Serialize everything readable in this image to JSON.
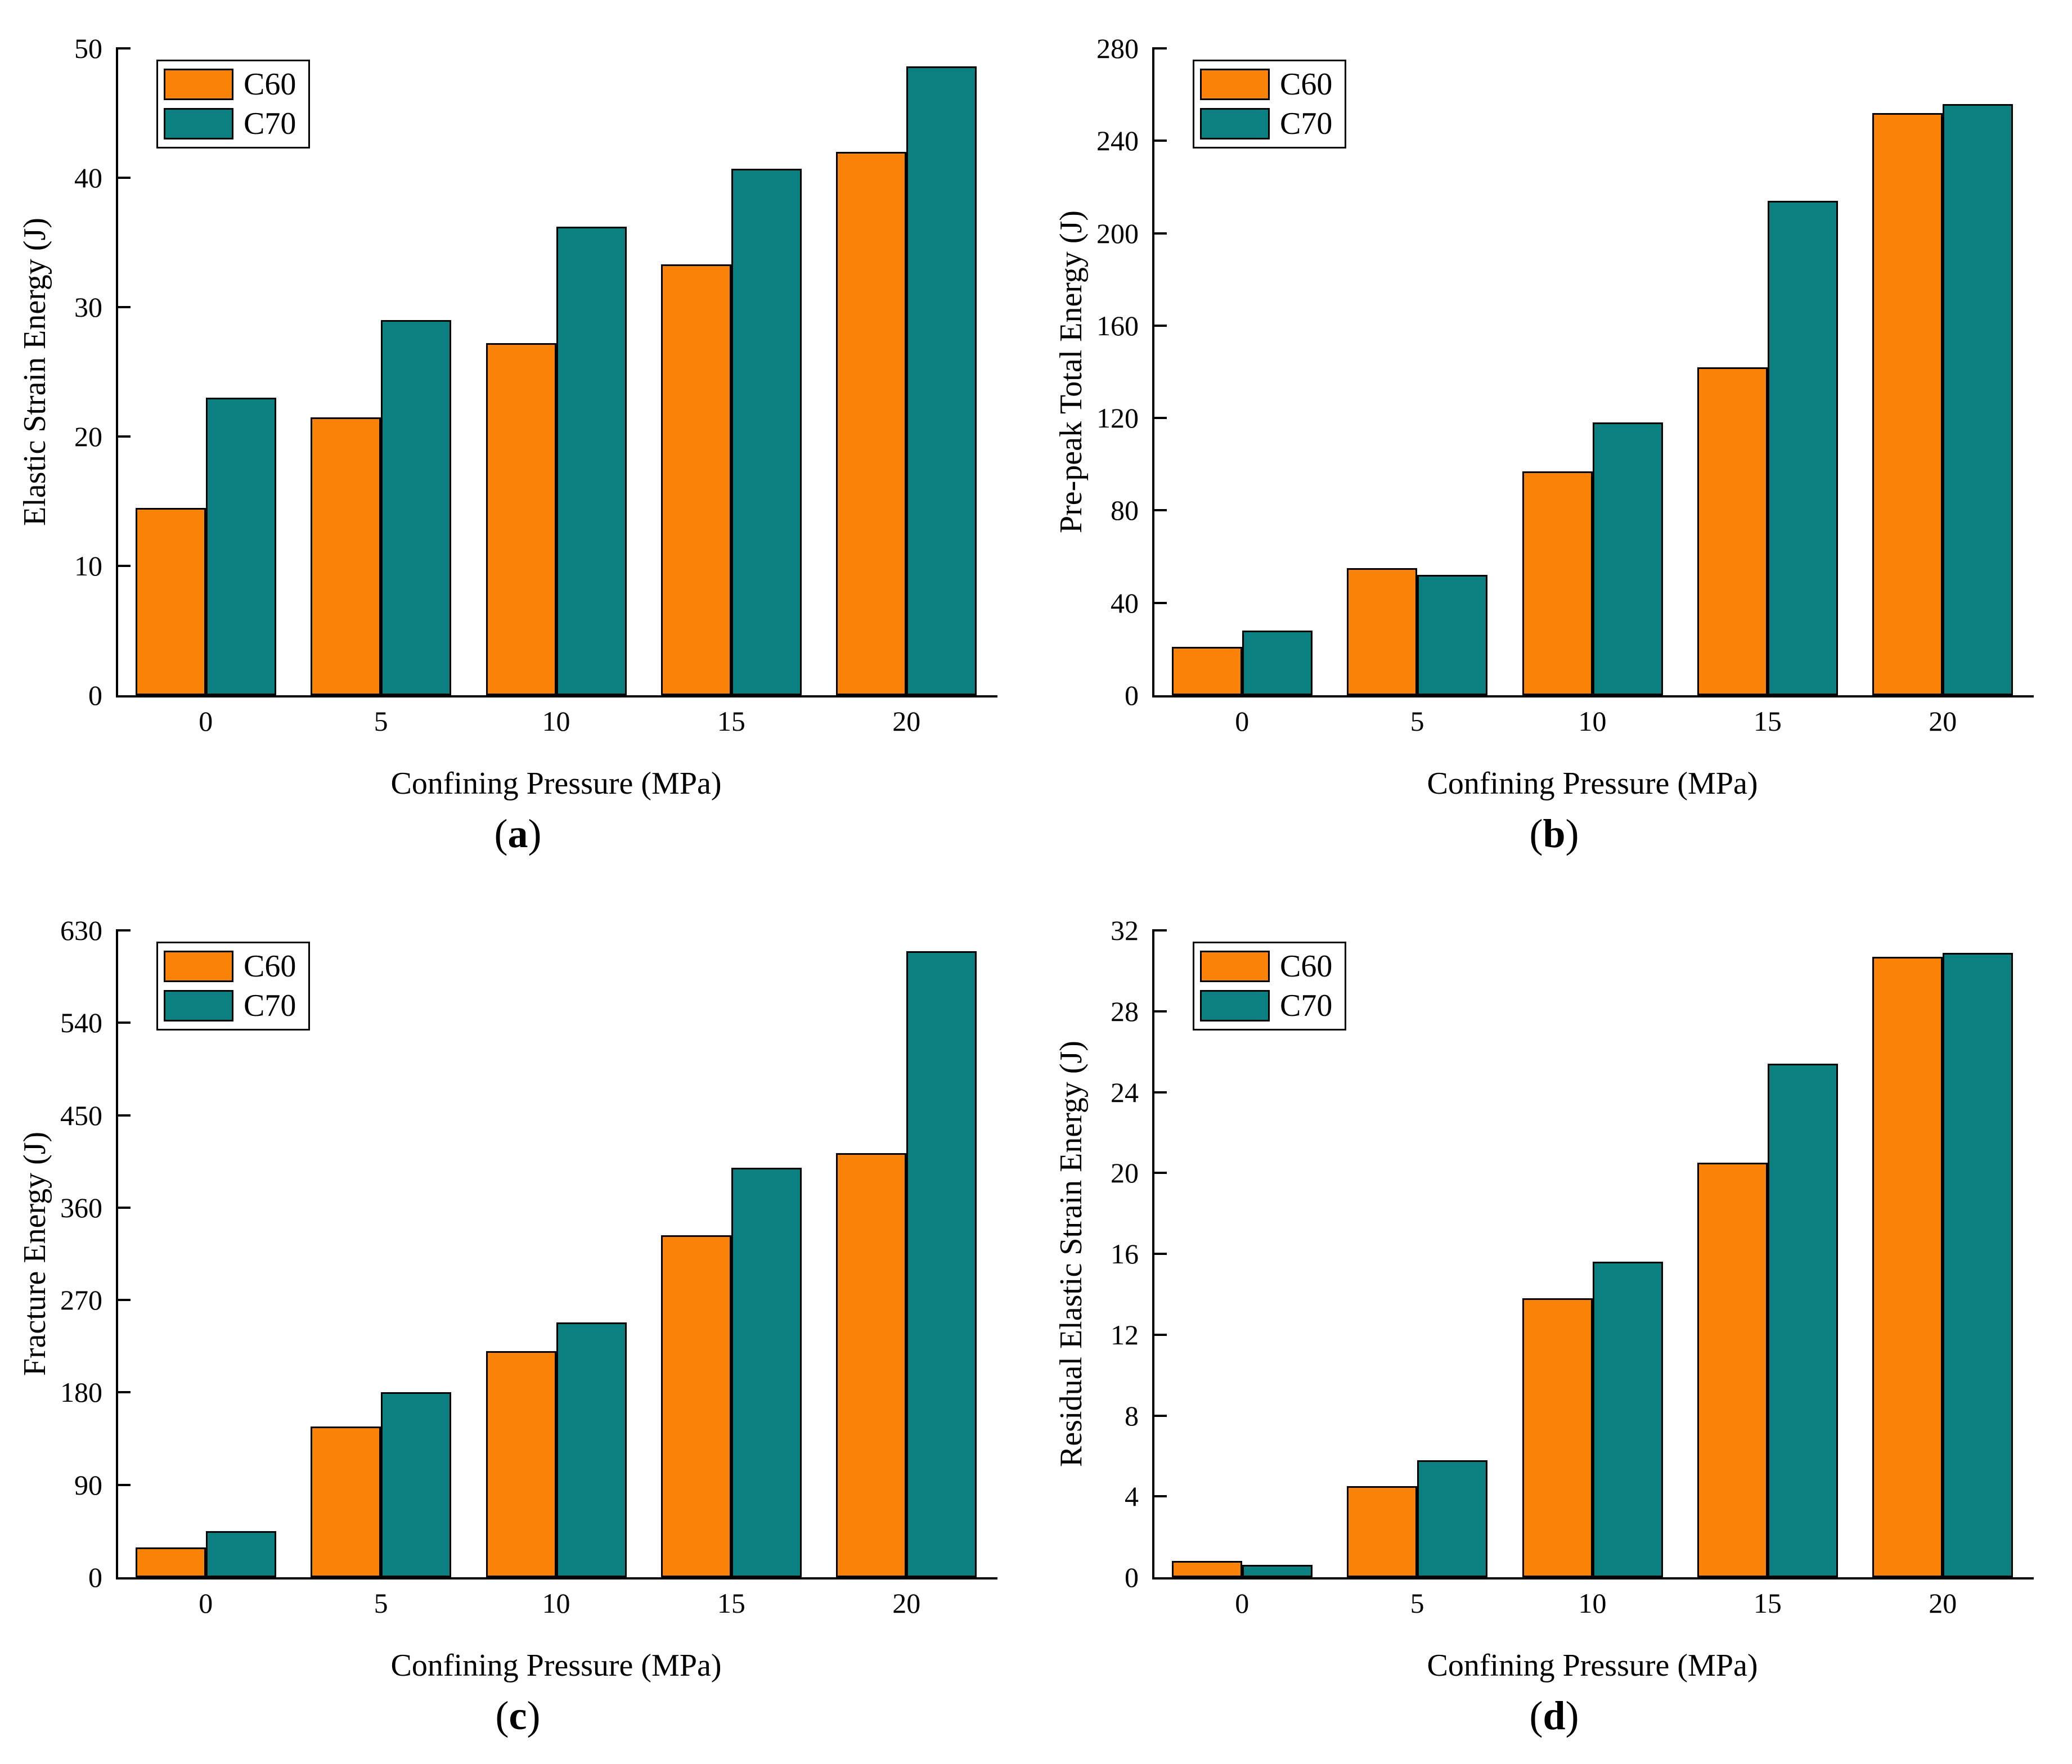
{
  "figure": {
    "x_title": "Confining Pressure (MPa)",
    "categories": [
      "0",
      "5",
      "10",
      "15",
      "20"
    ],
    "legend_labels": [
      "C60",
      "C70"
    ],
    "colors": {
      "C60": "#FA8307",
      "C70": "#0A8080",
      "outline": "#000000",
      "background": "#FFFFFF",
      "text": "#000000"
    }
  },
  "chart_data": [
    {
      "type": "bar",
      "panel_label": "a",
      "ylabel": "Elastic Strain Energy (J)",
      "xlabel": "Confining Pressure (MPa)",
      "categories": [
        0,
        5,
        10,
        15,
        20
      ],
      "ylim": [
        0,
        50
      ],
      "yticks": [
        0,
        10,
        20,
        30,
        40,
        50
      ],
      "grid": false,
      "legend_position": "top-left",
      "series": [
        {
          "name": "C60",
          "color": "#FA8307",
          "values": [
            14.5,
            21.5,
            27.2,
            33.3,
            42.0
          ]
        },
        {
          "name": "C70",
          "color": "#0A8080",
          "values": [
            23.0,
            29.0,
            36.2,
            40.7,
            48.6
          ]
        }
      ]
    },
    {
      "type": "bar",
      "panel_label": "b",
      "ylabel": "Pre-peak Total Energy (J)",
      "xlabel": "Confining Pressure (MPa)",
      "categories": [
        0,
        5,
        10,
        15,
        20
      ],
      "ylim": [
        0,
        280
      ],
      "yticks": [
        0,
        40,
        80,
        120,
        160,
        200,
        240,
        280
      ],
      "grid": false,
      "legend_position": "top-left",
      "series": [
        {
          "name": "C60",
          "color": "#FA8307",
          "values": [
            21,
            55,
            97,
            142,
            252
          ]
        },
        {
          "name": "C70",
          "color": "#0A8080",
          "values": [
            28,
            52,
            118,
            214,
            256
          ]
        }
      ]
    },
    {
      "type": "bar",
      "panel_label": "c",
      "ylabel": "Fracture Energy (J)",
      "xlabel": "Confining Pressure (MPa)",
      "categories": [
        0,
        5,
        10,
        15,
        20
      ],
      "ylim": [
        0,
        630
      ],
      "yticks": [
        0,
        90,
        180,
        270,
        360,
        450,
        540,
        630
      ],
      "grid": false,
      "legend_position": "top-left",
      "series": [
        {
          "name": "C60",
          "color": "#FA8307",
          "values": [
            29,
            147,
            220,
            333,
            413
          ]
        },
        {
          "name": "C70",
          "color": "#0A8080",
          "values": [
            45,
            180,
            248,
            399,
            610
          ]
        }
      ]
    },
    {
      "type": "bar",
      "panel_label": "d",
      "ylabel": "Residual Elastic Strain Energy (J)",
      "xlabel": "Confining Pressure (MPa)",
      "categories": [
        0,
        5,
        10,
        15,
        20
      ],
      "ylim": [
        0,
        32
      ],
      "yticks": [
        0,
        4,
        8,
        12,
        16,
        20,
        24,
        28,
        32
      ],
      "grid": false,
      "legend_position": "top-left",
      "series": [
        {
          "name": "C60",
          "color": "#FA8307",
          "values": [
            0.8,
            4.5,
            13.8,
            20.5,
            30.7
          ]
        },
        {
          "name": "C70",
          "color": "#0A8080",
          "values": [
            0.6,
            5.8,
            15.6,
            25.4,
            30.9
          ]
        }
      ]
    }
  ]
}
